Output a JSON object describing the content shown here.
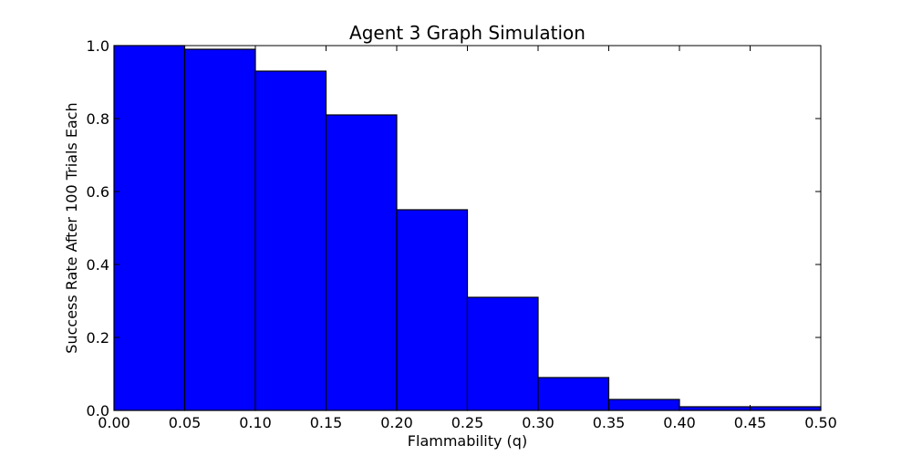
{
  "chart_data": {
    "type": "bar",
    "title": "Agent 3 Graph Simulation",
    "xlabel": "Flammability (q)",
    "ylabel": "Success Rate After 100 Trials Each",
    "xlim": [
      0.0,
      0.5
    ],
    "ylim": [
      0.0,
      1.0
    ],
    "x_ticks": [
      "0.00",
      "0.05",
      "0.10",
      "0.15",
      "0.20",
      "0.25",
      "0.30",
      "0.35",
      "0.40",
      "0.45",
      "0.50"
    ],
    "y_ticks": [
      "0.0",
      "0.2",
      "0.4",
      "0.6",
      "0.8",
      "1.0"
    ],
    "bin_width": 0.05,
    "x": [
      0.0,
      0.05,
      0.1,
      0.15,
      0.2,
      0.25,
      0.3,
      0.35,
      0.4,
      0.45
    ],
    "values": [
      1.0,
      0.99,
      0.93,
      0.81,
      0.55,
      0.31,
      0.09,
      0.03,
      0.01,
      0.01
    ],
    "grid": false,
    "colors": {
      "bar_fill": "#0000ff",
      "bar_edge": "#000000",
      "axes": "#000000",
      "background": "#ffffff"
    }
  }
}
